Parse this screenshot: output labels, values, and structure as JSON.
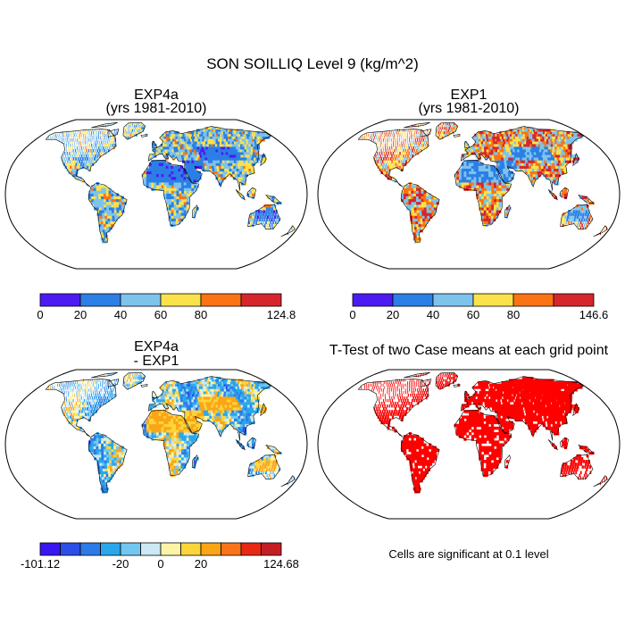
{
  "title": "SON SOILLIQ Level 9 (kg/m^2)",
  "panels": [
    {
      "id": "exp4a",
      "title_line1": "EXP4a",
      "title_line2": "(yrs 1981-2010)",
      "colorbar": {
        "colors": [
          "#4b1bf2",
          "#2b7fe6",
          "#7ec3ec",
          "#fbe24a",
          "#fb7413",
          "#d6262c"
        ],
        "tick_labels": [
          "0",
          "20",
          "40",
          "60",
          "80",
          "124.8"
        ]
      }
    },
    {
      "id": "exp1",
      "title_line1": "EXP1",
      "title_line2": "(yrs 1981-2010)",
      "colorbar": {
        "colors": [
          "#4b1bf2",
          "#2b7fe6",
          "#7ec3ec",
          "#fbe24a",
          "#fb7413",
          "#d6262c"
        ],
        "tick_labels": [
          "0",
          "20",
          "40",
          "60",
          "80",
          "146.6"
        ]
      }
    },
    {
      "id": "diff",
      "title_line1": "EXP4a",
      "title_line2": "- EXP1",
      "colorbar": {
        "colors": [
          "#3a16f0",
          "#2c4fe8",
          "#2c7be8",
          "#2aa7ec",
          "#72c7f2",
          "#cbe8f4",
          "#fdf3a6",
          "#fbd53a",
          "#fba516",
          "#f9731a",
          "#e82814",
          "#c41e24"
        ],
        "tick_labels": [
          "-101.12",
          "-20",
          "0",
          "20",
          "124.68"
        ]
      }
    },
    {
      "id": "ttest",
      "title_line1": "T-Test of two Case means at each grid point",
      "note": "Cells are significant at 0.1 level",
      "signif_color": "#ff0000"
    }
  ]
}
